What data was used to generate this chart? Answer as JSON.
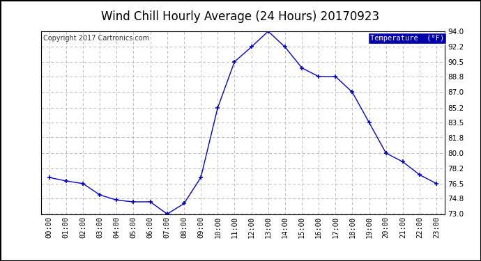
{
  "title": "Wind Chill Hourly Average (24 Hours) 20170923",
  "copyright": "Copyright 2017 Cartronics.com",
  "legend_label": "Temperature  (°F)",
  "hours": [
    "00:00",
    "01:00",
    "02:00",
    "03:00",
    "04:00",
    "05:00",
    "06:00",
    "07:00",
    "08:00",
    "09:00",
    "10:00",
    "11:00",
    "12:00",
    "13:00",
    "14:00",
    "15:00",
    "16:00",
    "17:00",
    "18:00",
    "19:00",
    "20:00",
    "21:00",
    "22:00",
    "23:00"
  ],
  "values": [
    77.2,
    76.8,
    76.5,
    75.2,
    74.6,
    74.4,
    74.4,
    73.0,
    74.2,
    77.2,
    85.2,
    90.5,
    92.2,
    94.0,
    92.2,
    89.8,
    88.8,
    88.8,
    87.0,
    83.5,
    80.0,
    79.0,
    77.5,
    76.5
  ],
  "ylim_min": 73.0,
  "ylim_max": 94.0,
  "yticks": [
    73.0,
    74.8,
    76.5,
    78.2,
    80.0,
    81.8,
    83.5,
    85.2,
    87.0,
    88.8,
    90.5,
    92.2,
    94.0
  ],
  "line_color": "#0000cc",
  "marker": "+",
  "marker_color": "#0000cc",
  "bg_color": "#ffffff",
  "plot_bg_color": "#ffffff",
  "grid_color": "#bbbbbb",
  "title_fontsize": 12,
  "copyright_fontsize": 7,
  "tick_fontsize": 7.5,
  "legend_bg": "#0000aa",
  "legend_fg": "#ffffff"
}
